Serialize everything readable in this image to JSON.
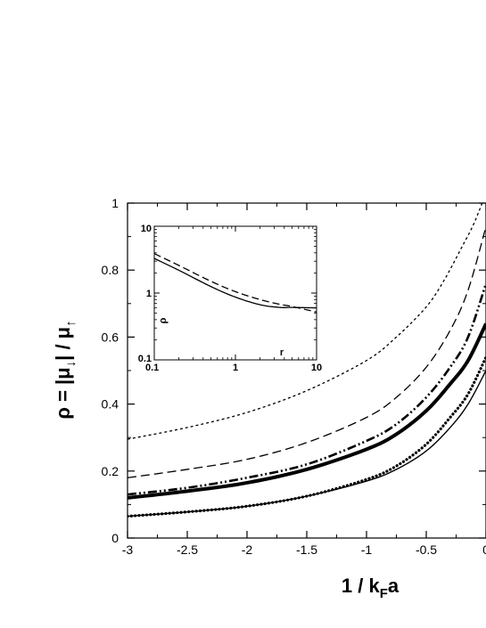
{
  "chart_data": [
    {
      "type": "line",
      "xlabel": {
        "main": "1 / k",
        "sub": "F",
        "tail": "a"
      },
      "ylabel": {
        "p1": "ρ = ",
        "p2": "|μ",
        "p3": "↓",
        "p4": "| / μ",
        "p5": "↑"
      },
      "xlim": [
        -3,
        0
      ],
      "ylim": [
        0,
        1
      ],
      "xticks": [
        "-3",
        "-2.5",
        "-2",
        "-1.5",
        "-1",
        "-0.5",
        "0"
      ],
      "yticks": [
        "0",
        "0.2",
        "0.4",
        "0.6",
        "0.8",
        "1"
      ],
      "series": [
        {
          "style": "short-dash",
          "x": [
            -3,
            -2.5,
            -2,
            -1.5,
            -1,
            -0.75,
            -0.5,
            -0.35,
            -0.2,
            -0.1,
            0
          ],
          "y": [
            0.295,
            0.33,
            0.375,
            0.44,
            0.53,
            0.6,
            0.69,
            0.77,
            0.87,
            0.94,
            1.03
          ]
        },
        {
          "style": "long-dash",
          "x": [
            -3,
            -2.5,
            -2,
            -1.5,
            -1,
            -0.75,
            -0.5,
            -0.3,
            -0.15,
            0
          ],
          "y": [
            0.18,
            0.205,
            0.235,
            0.285,
            0.36,
            0.42,
            0.51,
            0.62,
            0.74,
            0.93
          ]
        },
        {
          "style": "dash-dot-dot",
          "x": [
            -3,
            -2.5,
            -2,
            -1.5,
            -1,
            -0.75,
            -0.5,
            -0.3,
            -0.15,
            0
          ],
          "y": [
            0.13,
            0.15,
            0.18,
            0.22,
            0.29,
            0.34,
            0.42,
            0.51,
            0.6,
            0.76
          ]
        },
        {
          "style": "thick-solid",
          "x": [
            -3,
            -2.5,
            -2,
            -1.5,
            -1,
            -0.75,
            -0.5,
            -0.3,
            -0.15,
            0
          ],
          "y": [
            0.12,
            0.14,
            0.165,
            0.205,
            0.265,
            0.31,
            0.38,
            0.46,
            0.53,
            0.64
          ]
        },
        {
          "style": "dotted-markers",
          "x": [
            -3,
            -2.5,
            -2,
            -1.5,
            -1,
            -0.75,
            -0.5,
            -0.3,
            -0.15,
            0
          ],
          "y": [
            0.065,
            0.078,
            0.095,
            0.125,
            0.175,
            0.215,
            0.28,
            0.36,
            0.43,
            0.54
          ]
        },
        {
          "style": "thin-solid",
          "x": [
            -3,
            -2.5,
            -2,
            -1.5,
            -1,
            -0.75,
            -0.5,
            -0.3,
            -0.15,
            0
          ],
          "y": [
            0.065,
            0.078,
            0.095,
            0.125,
            0.17,
            0.205,
            0.26,
            0.33,
            0.4,
            0.5
          ]
        }
      ]
    },
    {
      "type": "line",
      "scale": "log-log",
      "xlabel": "r",
      "ylabel": "ρ",
      "xlim": [
        0.1,
        10
      ],
      "ylim": [
        0.1,
        10
      ],
      "xticks": [
        "0.1",
        "1",
        "10"
      ],
      "yticks": [
        "0.1",
        "1",
        "10"
      ],
      "series": [
        {
          "style": "solid",
          "x": [
            0.1,
            0.2,
            0.5,
            1,
            2,
            3.5,
            5,
            10
          ],
          "y": [
            3.3,
            2.2,
            1.25,
            0.87,
            0.67,
            0.61,
            0.61,
            0.6
          ]
        },
        {
          "style": "dashed",
          "x": [
            0.1,
            0.2,
            0.5,
            1,
            2,
            3.5,
            5,
            10
          ],
          "y": [
            3.9,
            2.6,
            1.5,
            1.05,
            0.8,
            0.68,
            0.63,
            0.52
          ]
        }
      ]
    }
  ]
}
